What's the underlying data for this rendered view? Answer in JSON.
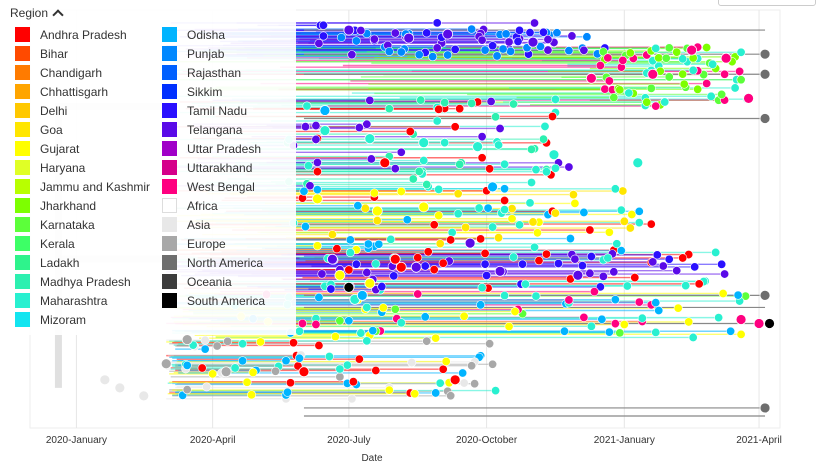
{
  "legend": {
    "title": "Region",
    "columns": [
      [
        {
          "label": "Andhra Pradesh",
          "color": "#ff0000"
        },
        {
          "label": "Bihar",
          "color": "#ff4a00"
        },
        {
          "label": "Chandigarh",
          "color": "#ff7b00"
        },
        {
          "label": "Chhattisgarh",
          "color": "#ffa500"
        },
        {
          "label": "Delhi",
          "color": "#ffc800"
        },
        {
          "label": "Goa",
          "color": "#ffe600"
        },
        {
          "label": "Gujarat",
          "color": "#ffff00"
        },
        {
          "label": "Haryana",
          "color": "#e0ff26"
        },
        {
          "label": "Jammu and Kashmir",
          "color": "#b8ff00"
        },
        {
          "label": "Jharkhand",
          "color": "#7dff00"
        },
        {
          "label": "Karnataka",
          "color": "#5cff3a"
        },
        {
          "label": "Kerala",
          "color": "#3dff66"
        },
        {
          "label": "Ladakh",
          "color": "#2ef38c"
        },
        {
          "label": "Madhya Pradesh",
          "color": "#2cf0b0"
        },
        {
          "label": "Maharashtra",
          "color": "#28f0d0"
        },
        {
          "label": "Mizoram",
          "color": "#12e5f0"
        }
      ],
      [
        {
          "label": "Odisha",
          "color": "#00b4ff"
        },
        {
          "label": "Punjab",
          "color": "#0088ff"
        },
        {
          "label": "Rajasthan",
          "color": "#0060ff"
        },
        {
          "label": "Sikkim",
          "color": "#0030ff"
        },
        {
          "label": "Tamil Nadu",
          "color": "#2a10ff"
        },
        {
          "label": "Telangana",
          "color": "#5a0ae8"
        },
        {
          "label": "Uttar Pradesh",
          "color": "#a000c8"
        },
        {
          "label": "Uttarakhand",
          "color": "#d5008a"
        },
        {
          "label": "West Bengal",
          "color": "#ff0080"
        },
        {
          "label": "Africa",
          "color": "#ffffff"
        },
        {
          "label": "Asia",
          "color": "#e8e8e8"
        },
        {
          "label": "Europe",
          "color": "#a8a8a8"
        },
        {
          "label": "North America",
          "color": "#6e6e6e"
        },
        {
          "label": "Oceania",
          "color": "#3c3c3c"
        },
        {
          "label": "South America",
          "color": "#000000"
        }
      ]
    ]
  },
  "chart_data": {
    "type": "scatter",
    "subtype": "phylogenetic-time-tree",
    "xlabel": "Date",
    "x_ticks": [
      "2020-January",
      "2020-April",
      "2020-July",
      "2020-October",
      "2021-January",
      "2021-April"
    ],
    "xlim": [
      "2019-12-01",
      "2021-04-15"
    ],
    "grid": true,
    "legend_placement": "top-left",
    "series": [
      {
        "name": "Telangana",
        "points": [
          {
            "date": "2020-07-01",
            "tip": 0.97
          },
          {
            "date": "2020-08-10",
            "tip": 0.95
          },
          {
            "date": "2020-09-05",
            "tip": 0.96
          },
          {
            "date": "2020-11-01",
            "tip": 0.94
          },
          {
            "date": "2020-06-20",
            "tip": 0.4
          },
          {
            "date": "2020-08-15",
            "tip": 0.38
          },
          {
            "date": "2020-10-10",
            "tip": 0.37
          },
          {
            "date": "2020-12-01",
            "tip": 0.36
          },
          {
            "date": "2020-09-20",
            "tip": 0.44
          }
        ]
      },
      {
        "name": "West Bengal",
        "points": [
          {
            "date": "2021-02-15",
            "tip": 0.92
          },
          {
            "date": "2021-03-10",
            "tip": 0.9
          },
          {
            "date": "2021-01-20",
            "tip": 0.86
          },
          {
            "date": "2021-03-25",
            "tip": 0.8
          },
          {
            "date": "2021-03-20",
            "tip": 0.25
          },
          {
            "date": "2021-04-01",
            "tip": 0.24
          },
          {
            "date": "2020-12-10",
            "tip": 0.85
          }
        ]
      },
      {
        "name": "Maharashtra",
        "points": [
          {
            "date": "2020-06-15",
            "tip": 0.72
          },
          {
            "date": "2020-07-15",
            "tip": 0.7
          },
          {
            "date": "2020-08-20",
            "tip": 0.69
          },
          {
            "date": "2020-09-25",
            "tip": 0.68
          },
          {
            "date": "2020-11-15",
            "tip": 0.66
          },
          {
            "date": "2021-01-10",
            "tip": 0.64
          },
          {
            "date": "2020-07-05",
            "tip": 0.3
          }
        ]
      },
      {
        "name": "Gujarat",
        "points": [
          {
            "date": "2020-06-10",
            "tip": 0.55
          },
          {
            "date": "2020-07-20",
            "tip": 0.52
          },
          {
            "date": "2020-08-20",
            "tip": 0.53
          },
          {
            "date": "2020-06-25",
            "tip": 0.36
          },
          {
            "date": "2020-07-15",
            "tip": 0.34
          }
        ]
      },
      {
        "name": "Andhra Pradesh",
        "points": [
          {
            "date": "2020-07-25",
            "tip": 0.64
          },
          {
            "date": "2020-08-01",
            "tip": 0.4
          },
          {
            "date": "2020-08-05",
            "tip": 0.38
          },
          {
            "date": "2020-06-01",
            "tip": 0.12
          },
          {
            "date": "2020-09-10",
            "tip": 0.1
          }
        ]
      },
      {
        "name": "Odisha",
        "points": [
          {
            "date": "2020-06-15",
            "tip": 0.77
          },
          {
            "date": "2020-07-10",
            "tip": 0.31
          },
          {
            "date": "2020-10-05",
            "tip": 0.58
          }
        ]
      },
      {
        "name": "Europe",
        "points": [
          {
            "date": "2020-03-01",
            "tip": 0.14
          },
          {
            "date": "2020-04-10",
            "tip": 0.12
          },
          {
            "date": "2020-03-15",
            "tip": 0.2
          }
        ]
      },
      {
        "name": "Asia",
        "points": [
          {
            "date": "2020-01-20",
            "tip": 0.1
          },
          {
            "date": "2020-02-15",
            "tip": 0.06
          },
          {
            "date": "2020-01-30",
            "tip": 0.08
          }
        ]
      },
      {
        "name": "North America",
        "points": [
          {
            "date": "2021-04-05",
            "tip": 0.91
          },
          {
            "date": "2021-04-05",
            "tip": 0.86
          },
          {
            "date": "2021-04-05",
            "tip": 0.75
          },
          {
            "date": "2021-04-05",
            "tip": 0.31
          },
          {
            "date": "2021-04-05",
            "tip": 0.03
          }
        ]
      },
      {
        "name": "South America",
        "points": [
          {
            "date": "2021-04-08",
            "tip": 0.24
          },
          {
            "date": "2020-07-01",
            "tip": 0.33
          }
        ]
      }
    ]
  }
}
